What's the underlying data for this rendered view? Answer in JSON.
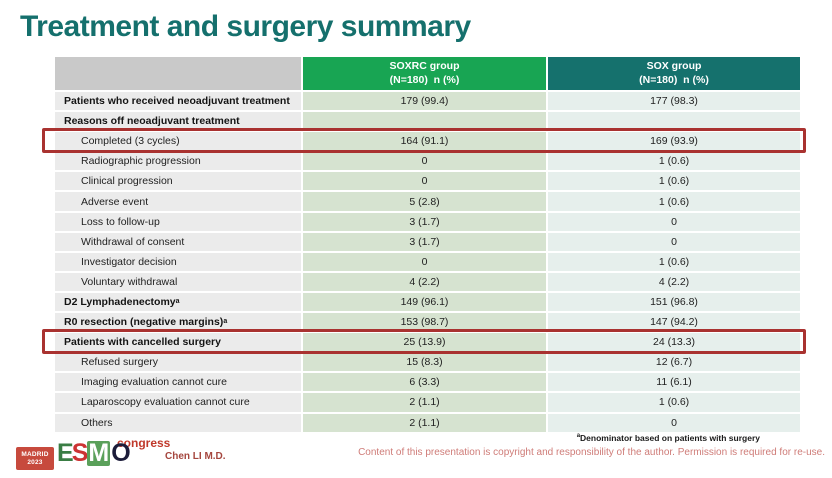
{
  "slide": {
    "title": "Treatment and surgery summary",
    "author": "Chen LI M.D.",
    "footnote_sup": "a",
    "footnote": "Denominator based on patients with surgery",
    "copyright": "Content of this presentation is copyright and responsibility of the author. Permission is required for re-use."
  },
  "logo": {
    "city": "MADRID",
    "year": "2023",
    "letters": [
      "E",
      "S",
      "M",
      "O"
    ],
    "congress": "congress"
  },
  "colors": {
    "title_teal": "#15706d",
    "header_green": "#18a553",
    "header_teal": "#15716d",
    "label_gray": "#ebebeb",
    "cell_green": "#d6e3d0",
    "cell_teal": "#e6efec",
    "highlight_red": "#a93230",
    "copyright_red": "#cf7c78"
  },
  "table": {
    "columns": [
      {
        "group": "",
        "sub": ""
      },
      {
        "group": "SOXRC group",
        "sub": "(N=180)  n (%)"
      },
      {
        "group": "SOX group",
        "sub": "(N=180)  n (%)"
      }
    ],
    "rows": [
      {
        "label": "Patients who received neoadjuvant treatment",
        "sup": "",
        "soxrc": "179 (99.4)",
        "sox": "177 (98.3)",
        "bold": true,
        "indent": false,
        "highlight": false
      },
      {
        "label": "Reasons off neoadjuvant treatment",
        "sup": "",
        "soxrc": "",
        "sox": "",
        "bold": true,
        "indent": false,
        "highlight": false
      },
      {
        "label": "Completed (3 cycles)",
        "sup": "",
        "soxrc": "164 (91.1)",
        "sox": "169 (93.9)",
        "bold": false,
        "indent": true,
        "highlight": true
      },
      {
        "label": "Radiographic progression",
        "sup": "",
        "soxrc": "0",
        "sox": "1 (0.6)",
        "bold": false,
        "indent": true,
        "highlight": false
      },
      {
        "label": "Clinical progression",
        "sup": "",
        "soxrc": "0",
        "sox": "1 (0.6)",
        "bold": false,
        "indent": true,
        "highlight": false
      },
      {
        "label": "Adverse event",
        "sup": "",
        "soxrc": "5 (2.8)",
        "sox": "1 (0.6)",
        "bold": false,
        "indent": true,
        "highlight": false
      },
      {
        "label": "Loss to follow-up",
        "sup": "",
        "soxrc": "3 (1.7)",
        "sox": "0",
        "bold": false,
        "indent": true,
        "highlight": false
      },
      {
        "label": "Withdrawal of consent",
        "sup": "",
        "soxrc": "3 (1.7)",
        "sox": "0",
        "bold": false,
        "indent": true,
        "highlight": false
      },
      {
        "label": "Investigator decision",
        "sup": "",
        "soxrc": "0",
        "sox": "1 (0.6)",
        "bold": false,
        "indent": true,
        "highlight": false
      },
      {
        "label": "Voluntary withdrawal",
        "sup": "",
        "soxrc": "4 (2.2)",
        "sox": "4 (2.2)",
        "bold": false,
        "indent": true,
        "highlight": false
      },
      {
        "label": "D2 Lymphadenectomy",
        "sup": "a",
        "soxrc": "149 (96.1)",
        "sox": "151 (96.8)",
        "bold": true,
        "indent": false,
        "highlight": false
      },
      {
        "label": "R0 resection (negative margins)",
        "sup": "a",
        "soxrc": "153 (98.7)",
        "sox": "147 (94.2)",
        "bold": true,
        "indent": false,
        "highlight": false
      },
      {
        "label": "Patients with cancelled surgery",
        "sup": "",
        "soxrc": "25 (13.9)",
        "sox": "24 (13.3)",
        "bold": true,
        "indent": false,
        "highlight": true
      },
      {
        "label": "Refused surgery",
        "sup": "",
        "soxrc": "15 (8.3)",
        "sox": "12 (6.7)",
        "bold": false,
        "indent": true,
        "highlight": false
      },
      {
        "label": "Imaging evaluation cannot cure",
        "sup": "",
        "soxrc": "6 (3.3)",
        "sox": "11 (6.1)",
        "bold": false,
        "indent": true,
        "highlight": false
      },
      {
        "label": "Laparoscopy evaluation cannot cure",
        "sup": "",
        "soxrc": "2 (1.1)",
        "sox": "1 (0.6)",
        "bold": false,
        "indent": true,
        "highlight": false
      },
      {
        "label": "Others",
        "sup": "",
        "soxrc": "2 (1.1)",
        "sox": "0",
        "bold": false,
        "indent": true,
        "highlight": false
      }
    ]
  }
}
